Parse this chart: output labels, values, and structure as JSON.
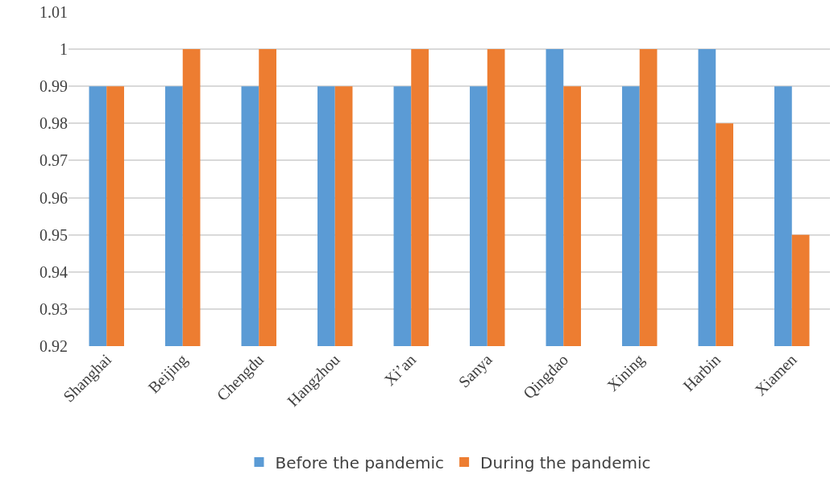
{
  "chart_data": {
    "type": "bar",
    "categories": [
      "Shanghai",
      "Beijing",
      "Chengdu",
      "Hangzhou",
      "Xi’an",
      "Sanya",
      "Qingdao",
      "Xining",
      "Harbin",
      "Xiamen"
    ],
    "series": [
      {
        "name": "Before the pandemic",
        "color": "#5b9bd5",
        "values": [
          0.99,
          0.99,
          0.99,
          0.99,
          0.99,
          0.99,
          1.0,
          0.99,
          1.0,
          0.99
        ]
      },
      {
        "name": "During the pandemic",
        "color": "#ed7d31",
        "values": [
          0.99,
          1.0,
          1.0,
          0.99,
          1.0,
          1.0,
          0.99,
          1.0,
          0.98,
          0.95
        ]
      }
    ],
    "ylim": [
      0.92,
      1.01
    ],
    "yticks": [
      0.92,
      0.93,
      0.94,
      0.95,
      0.96,
      0.97,
      0.98,
      0.99,
      1,
      1.01
    ],
    "grid": "y",
    "legend": "bottom"
  }
}
